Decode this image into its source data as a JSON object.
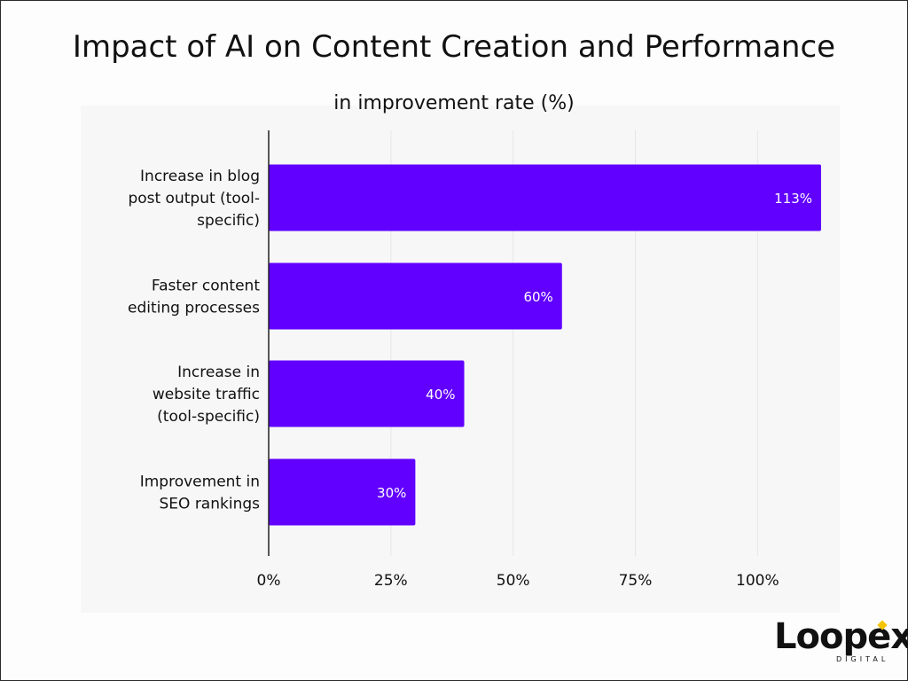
{
  "title": "Impact of AI on Content Creation and Performance",
  "subtitle": "in improvement rate (%)",
  "colors": {
    "bar": "#6100ff",
    "axis": "#222222",
    "grid": "#e6e6e9",
    "logo_accent": "#f5c400"
  },
  "logo": {
    "name": "Loopex",
    "tagline": "DIGITAL"
  },
  "chart_data": {
    "type": "bar",
    "orientation": "horizontal",
    "title": "Impact of AI on Content Creation and Performance",
    "subtitle": "in improvement rate (%)",
    "categories": [
      [
        "Increase in blog",
        "post output (tool-",
        "specific)"
      ],
      [
        "Faster content",
        "editing processes"
      ],
      [
        "Increase in",
        "website traffic",
        "(tool-specific)"
      ],
      [
        "Improvement in",
        "SEO rankings"
      ]
    ],
    "values": [
      113,
      60,
      40,
      30
    ],
    "value_labels": [
      "113%",
      "60%",
      "40%",
      "30%"
    ],
    "xlim": [
      0,
      113
    ],
    "xticks": [
      0,
      25,
      50,
      75,
      100
    ],
    "xtick_labels": [
      "0%",
      "25%",
      "50%",
      "75%",
      "100%"
    ],
    "xlabel": "",
    "ylabel": "",
    "grid": true,
    "legend": "none"
  }
}
